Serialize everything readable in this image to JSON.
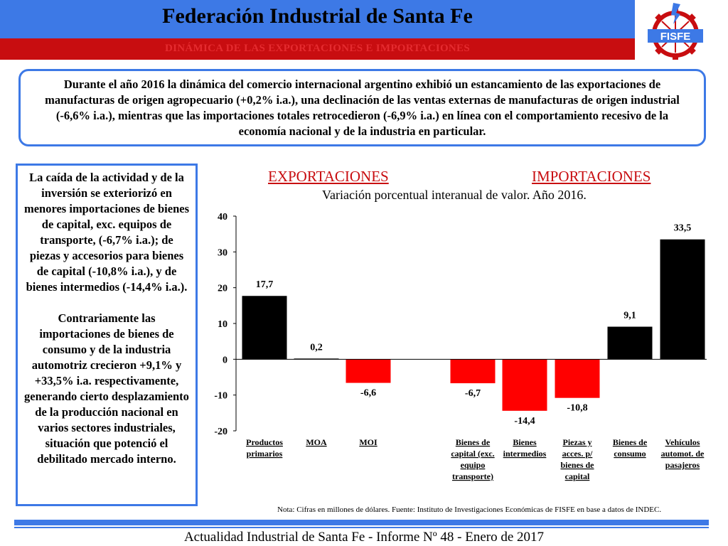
{
  "header": {
    "title": "Federación Industrial de Santa Fe",
    "subtitle": "DINÁMICA DE LAS EXPORTACIONES E IMPORTACIONES",
    "logo_text": "FISFE",
    "blue": "#3d79e6",
    "red": "#c80d10"
  },
  "intro": "Durante el año 2016 la dinámica del comercio internacional argentino exhibió un estancamiento de las exportaciones de manufacturas de origen agropecuario (+0,2% i.a.), una declinación de las ventas externas de manufacturas de origen industrial (-6,6% i.a.), mientras que las importaciones totales retrocedieron (-6,9% i.a.) en línea con el comportamiento recesivo de la economía nacional y de la industria en particular.",
  "sidebar": {
    "paragraph1": "La caída de la actividad y de la inversión se exteriorizó en menores importaciones de bienes de capital, exc. equipos de transporte, (-6,7% i.a.); de piezas y accesorios para bienes de capital (-10,8% i.a.), y de bienes intermedios (-14,4% i.a.).",
    "paragraph2": "Contrariamente las importaciones de bienes de consumo y de la industria automotriz crecieron +9,1% y +33,5% i.a. respectivamente, generando cierto desplazamiento de la producción nacional en varios sectores industriales, situación que potenció el debilitado mercado interno."
  },
  "chart_data": {
    "type": "bar",
    "group_labels": [
      "EXPORTACIONES",
      "IMPORTACIONES"
    ],
    "title": "Variación porcentual interanual de valor. Año 2016.",
    "categories": [
      "Productos primarios",
      "MOA",
      "MOI",
      "Bienes de capital (exc. equipo transporte)",
      "Bienes intermedios",
      "Piezas y acces. p/ bienes de capital",
      "Bienes de consumo",
      "Vehículos automot. de pasajeros"
    ],
    "values": [
      17.7,
      0.2,
      -6.6,
      -6.7,
      -14.4,
      -10.8,
      9.1,
      33.5
    ],
    "data_labels": [
      "17,7",
      "0,2",
      "-6,6",
      "-6,7",
      "-14,4",
      "-10,8",
      "9,1",
      "33,5"
    ],
    "ylim": [
      -20,
      40
    ],
    "yticks": [
      40,
      30,
      20,
      10,
      0,
      -10,
      -20
    ],
    "grid": false,
    "positive_color": "#000000",
    "negative_color": "#ff0000"
  },
  "note": "Nota: Cifras en millones de dólares. Fuente: Instituto de Investigaciones Económicas de  FISFE en base a datos de INDEC.",
  "footer": "Actualidad Industrial de Santa Fe - Informe Nº 48 - Enero de 2017"
}
